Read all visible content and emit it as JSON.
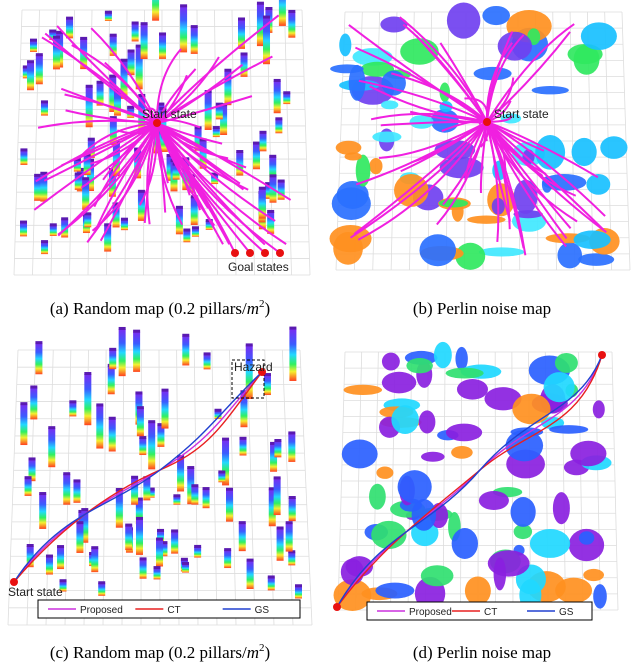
{
  "panels": [
    {
      "label": "(a)",
      "caption": "Random map (0.2 pillars/",
      "unit": "m",
      "exp": "2",
      "tail": ")",
      "start": "Start state",
      "goal": "Goal states"
    },
    {
      "label": "(b)",
      "caption": "Perlin noise map",
      "start": "Start state"
    },
    {
      "label": "(c)",
      "caption": "Random map (0.2 pillars/",
      "unit": "m",
      "exp": "2",
      "tail": ")",
      "start": "Start state",
      "hazard": "Hazard",
      "legend": [
        "Proposed",
        "CT",
        "GS"
      ]
    },
    {
      "label": "(d)",
      "caption": "Perlin noise map",
      "legend": [
        "Proposed",
        "CT",
        "GS"
      ]
    }
  ]
}
